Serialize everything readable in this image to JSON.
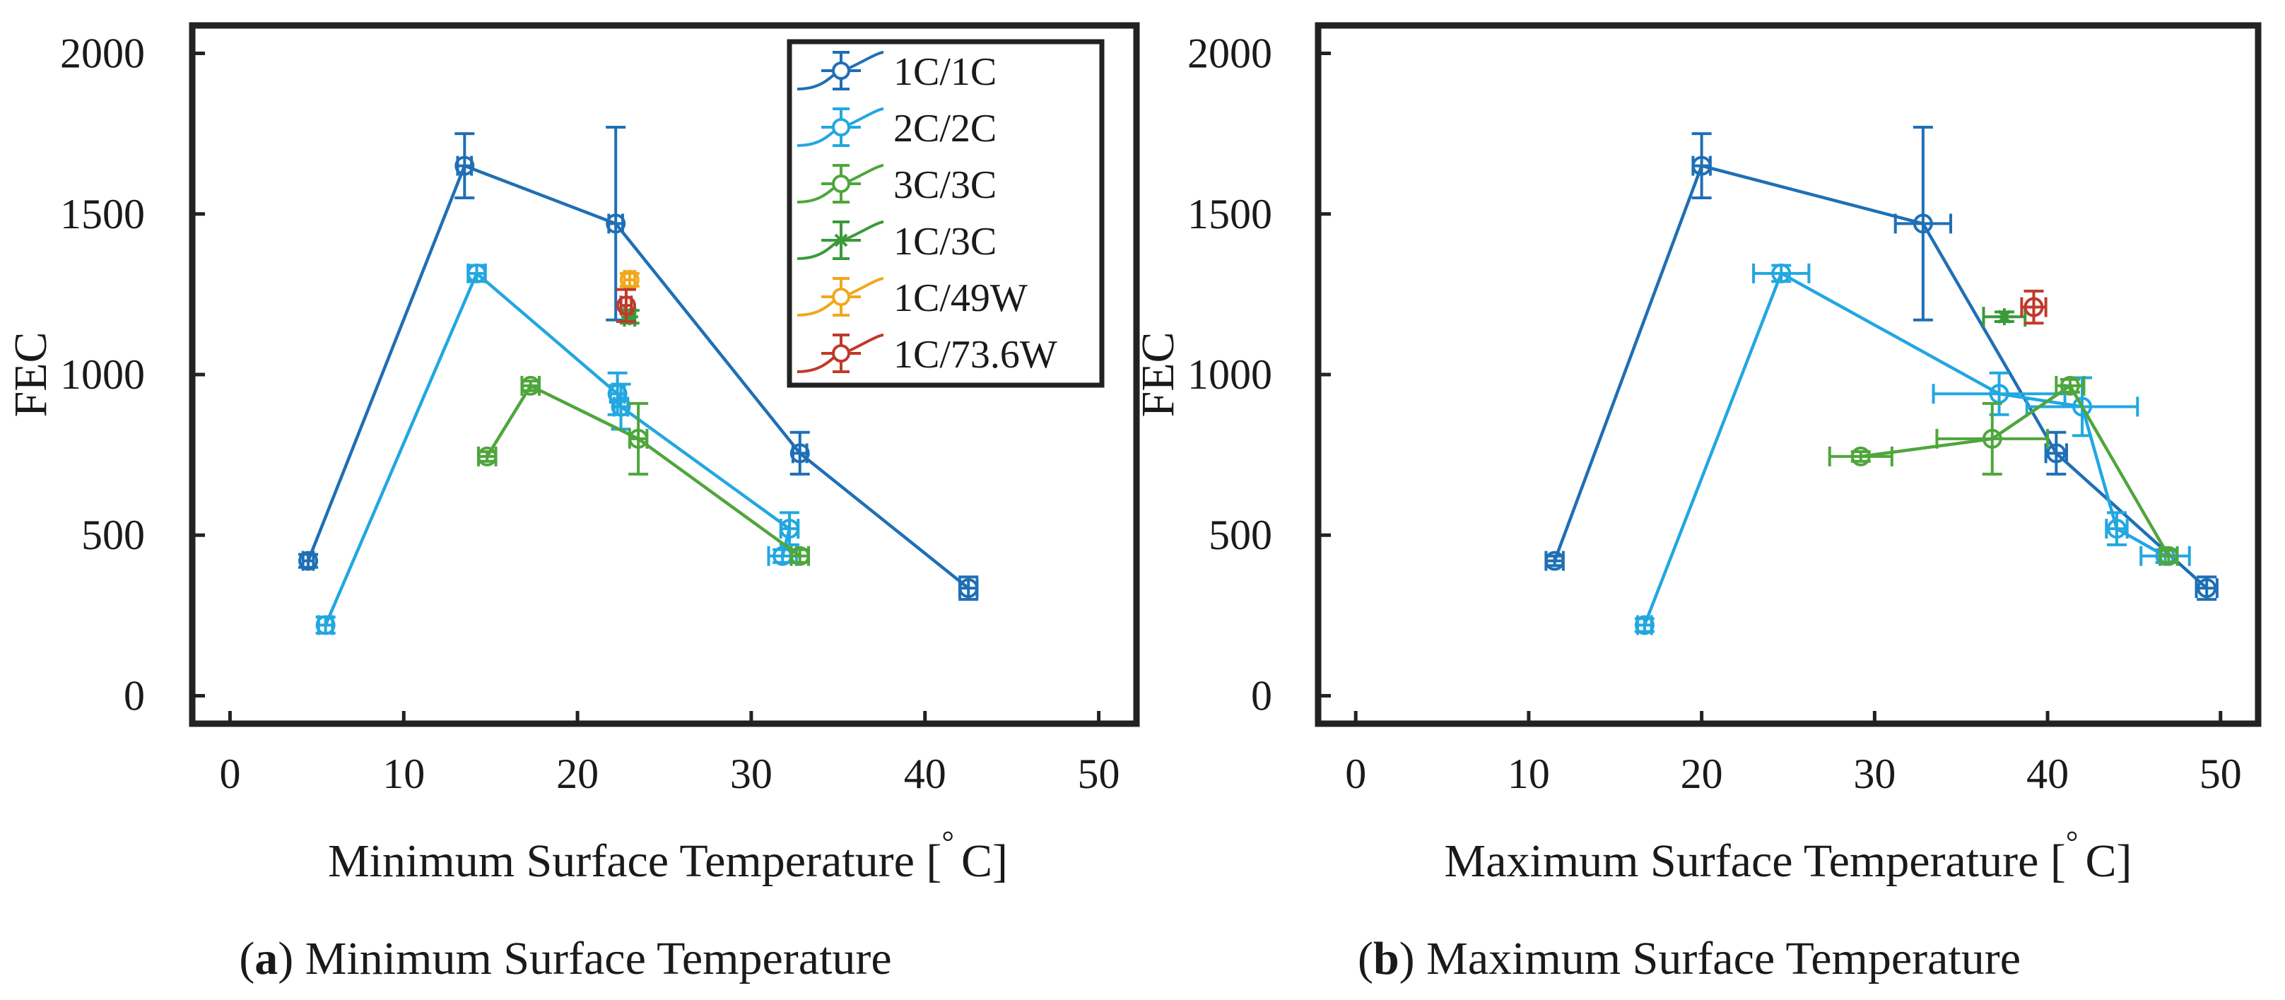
{
  "figure": {
    "captions": [
      {
        "letter": "a",
        "text": "Minimum Surface Temperature"
      },
      {
        "letter": "b",
        "text": "Maximum Surface Temperature"
      }
    ]
  },
  "legend": {
    "placement": "top-right of panel a",
    "entries": [
      {
        "name": "1C/1C",
        "color": "#1f6fb5",
        "marker": "circle"
      },
      {
        "name": "2C/2C",
        "color": "#22a7e0",
        "marker": "circle"
      },
      {
        "name": "3C/3C",
        "color": "#4fa63c",
        "marker": "circle"
      },
      {
        "name": "1C/3C",
        "color": "#3a9a3a",
        "marker": "asterisk"
      },
      {
        "name": "1C/49W",
        "color": "#f0a81c",
        "marker": "circle"
      },
      {
        "name": "1C/73.6W",
        "color": "#c0392b",
        "marker": "circle"
      }
    ]
  },
  "chart_data": [
    {
      "id": "a",
      "type": "scatter",
      "title": "",
      "xlabel": "Minimum Surface Temperature [",
      "xlabel_deg": "°",
      "xlabel_unit": "C]",
      "ylabel": "FEC",
      "xlim": [
        0,
        50
      ],
      "ylim": [
        0,
        2000
      ],
      "xticks": [
        0,
        10,
        20,
        30,
        40,
        50
      ],
      "yticks": [
        0,
        500,
        1000,
        1500,
        2000
      ],
      "grid": false,
      "series": [
        {
          "name": "1C/1C",
          "color": "#1f6fb5",
          "marker": "circle",
          "line": true,
          "points": [
            {
              "x": 4.5,
              "y": 420,
              "yerr": 20,
              "xerr": 0.3
            },
            {
              "x": 13.5,
              "y": 1650,
              "yerr": 100,
              "xerr": 0.4
            },
            {
              "x": 22.2,
              "y": 1470,
              "yerr": 300,
              "xerr": 0.4
            },
            {
              "x": 32.8,
              "y": 755,
              "yerr": 65,
              "xerr": 0.4
            },
            {
              "x": 42.5,
              "y": 335,
              "yerr": 35,
              "xerr": 0.5
            }
          ]
        },
        {
          "name": "2C/2C",
          "color": "#22a7e0",
          "marker": "circle",
          "line": true,
          "points": [
            {
              "x": 5.5,
              "y": 220,
              "yerr": 25,
              "xerr": 0.4
            },
            {
              "x": 14.2,
              "y": 1315,
              "yerr": 25,
              "xerr": 0.5
            },
            {
              "x": 22.3,
              "y": 940,
              "yerr": 65,
              "xerr": 0.4
            },
            {
              "x": 22.5,
              "y": 900,
              "yerr": 70,
              "xerr": 0.4
            },
            {
              "x": 32.2,
              "y": 520,
              "yerr": 50,
              "xerr": 0.5
            },
            {
              "x": 31.8,
              "y": 435,
              "yerr": 20,
              "xerr": 0.8
            }
          ]
        },
        {
          "name": "3C/3C",
          "color": "#4fa63c",
          "marker": "circle",
          "line": true,
          "points": [
            {
              "x": 14.8,
              "y": 745,
              "yerr": 15,
              "xerr": 0.5
            },
            {
              "x": 17.3,
              "y": 965,
              "yerr": 15,
              "xerr": 0.5
            },
            {
              "x": 23.5,
              "y": 800,
              "yerr": 110,
              "xerr": 0.5
            },
            {
              "x": 32.8,
              "y": 435,
              "yerr": 20,
              "xerr": 0.5
            }
          ]
        },
        {
          "name": "1C/3C",
          "color": "#3a9a3a",
          "marker": "asterisk",
          "line": false,
          "points": [
            {
              "x": 23.0,
              "y": 1180,
              "yerr": 20,
              "xerr": 0.3
            }
          ]
        },
        {
          "name": "1C/49W",
          "color": "#f0a81c",
          "marker": "circle",
          "line": false,
          "points": [
            {
              "x": 23.0,
              "y": 1295,
              "yerr": 20,
              "xerr": 0.3
            }
          ]
        },
        {
          "name": "1C/73.6W",
          "color": "#c0392b",
          "marker": "circle",
          "line": false,
          "points": [
            {
              "x": 22.8,
              "y": 1215,
              "yerr": 50,
              "xerr": 0.3
            }
          ]
        }
      ]
    },
    {
      "id": "b",
      "type": "scatter",
      "title": "",
      "xlabel": "Maximum Surface Temperature [",
      "xlabel_deg": "°",
      "xlabel_unit": "C]",
      "ylabel": "FEC",
      "xlim": [
        0,
        50
      ],
      "ylim": [
        0,
        2000
      ],
      "xticks": [
        0,
        10,
        20,
        30,
        40,
        50
      ],
      "yticks": [
        0,
        500,
        1000,
        1500,
        2000
      ],
      "grid": false,
      "series": [
        {
          "name": "1C/1C",
          "color": "#1f6fb5",
          "marker": "circle",
          "line": true,
          "points": [
            {
              "x": 11.5,
              "y": 420,
              "yerr": 15,
              "xerr": 0.5
            },
            {
              "x": 20.0,
              "y": 1650,
              "yerr": 100,
              "xerr": 0.5
            },
            {
              "x": 32.8,
              "y": 1470,
              "yerr": 300,
              "xerr": 1.6
            },
            {
              "x": 40.5,
              "y": 755,
              "yerr": 65,
              "xerr": 0.6
            },
            {
              "x": 49.2,
              "y": 335,
              "yerr": 35,
              "xerr": 0.6
            }
          ]
        },
        {
          "name": "2C/2C",
          "color": "#22a7e0",
          "marker": "circle",
          "line": true,
          "points": [
            {
              "x": 16.7,
              "y": 220,
              "yerr": 20,
              "xerr": 0.4
            },
            {
              "x": 24.6,
              "y": 1315,
              "yerr": 25,
              "xerr": 1.6
            },
            {
              "x": 37.2,
              "y": 940,
              "yerr": 65,
              "xerr": 3.8
            },
            {
              "x": 42.0,
              "y": 900,
              "yerr": 90,
              "xerr": 3.2
            },
            {
              "x": 44.0,
              "y": 520,
              "yerr": 50,
              "xerr": 0.6
            },
            {
              "x": 46.8,
              "y": 435,
              "yerr": 20,
              "xerr": 1.4
            }
          ]
        },
        {
          "name": "3C/3C",
          "color": "#4fa63c",
          "marker": "circle",
          "line": true,
          "points": [
            {
              "x": 29.2,
              "y": 745,
              "yerr": 15,
              "xerr": 1.8
            },
            {
              "x": 36.8,
              "y": 800,
              "yerr": 110,
              "xerr": 3.2
            },
            {
              "x": 41.3,
              "y": 965,
              "yerr": 20,
              "xerr": 0.8
            },
            {
              "x": 47.0,
              "y": 435,
              "yerr": 20,
              "xerr": 0.5
            }
          ]
        },
        {
          "name": "1C/3C",
          "color": "#3a9a3a",
          "marker": "asterisk",
          "line": false,
          "points": [
            {
              "x": 37.5,
              "y": 1180,
              "yerr": 15,
              "xerr": 1.2
            }
          ]
        },
        {
          "name": "1C/49W",
          "color": "#f0a81c",
          "marker": "circle",
          "line": false,
          "points": []
        },
        {
          "name": "1C/73.6W",
          "color": "#c0392b",
          "marker": "circle",
          "line": false,
          "points": [
            {
              "x": 39.2,
              "y": 1210,
              "yerr": 50,
              "xerr": 0.7
            }
          ]
        }
      ]
    }
  ]
}
